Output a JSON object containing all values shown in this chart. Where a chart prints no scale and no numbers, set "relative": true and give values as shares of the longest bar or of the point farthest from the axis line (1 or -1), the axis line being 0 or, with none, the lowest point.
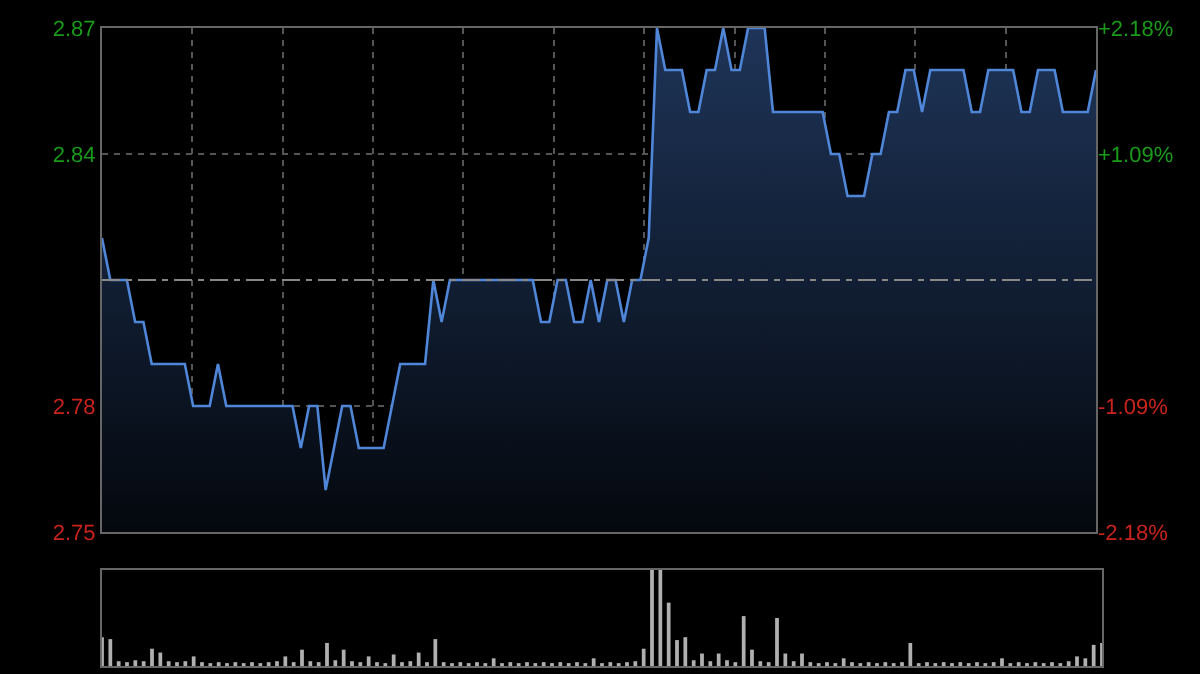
{
  "chart_data": [
    {
      "type": "area",
      "categories": [
        null,
        null,
        null,
        null,
        null,
        null,
        null,
        null,
        null,
        null,
        null,
        null,
        null,
        null,
        null,
        null,
        null,
        null,
        null,
        null,
        null,
        null,
        null,
        null,
        null,
        null,
        null,
        null,
        null,
        null,
        null,
        null,
        null,
        null,
        null,
        null,
        null,
        null,
        null,
        null,
        null,
        null,
        null,
        null,
        null,
        null,
        null,
        null,
        null,
        null,
        null,
        null,
        null,
        null,
        null,
        null,
        null,
        null,
        null,
        null,
        null,
        null,
        null,
        null,
        null,
        null,
        null,
        null,
        null,
        null,
        null,
        null,
        null,
        null,
        null,
        null,
        null,
        null,
        null,
        null,
        null,
        null,
        null,
        null,
        null,
        null,
        null,
        null,
        null,
        null,
        null,
        null,
        null,
        null,
        null,
        null,
        null,
        null,
        null,
        null,
        null,
        null,
        null,
        null,
        null,
        null,
        null,
        null,
        null,
        null,
        null,
        null,
        null,
        null,
        null,
        null,
        null,
        null,
        null,
        null,
        null
      ],
      "series": [
        {
          "color": "#4f86d8",
          "values": [
            2.82,
            2.81,
            2.81,
            2.81,
            2.8,
            2.8,
            2.79,
            2.79,
            2.79,
            2.79,
            2.79,
            2.78,
            2.78,
            2.78,
            2.79,
            2.78,
            2.78,
            2.78,
            2.78,
            2.78,
            2.78,
            2.78,
            2.78,
            2.78,
            2.77,
            2.78,
            2.78,
            2.76,
            2.77,
            2.78,
            2.78,
            2.77,
            2.77,
            2.77,
            2.77,
            2.78,
            2.79,
            2.79,
            2.79,
            2.79,
            2.81,
            2.8,
            2.81,
            2.81,
            2.81,
            2.81,
            2.81,
            2.81,
            2.81,
            2.81,
            2.81,
            2.81,
            2.81,
            2.8,
            2.8,
            2.81,
            2.81,
            2.8,
            2.8,
            2.81,
            2.8,
            2.81,
            2.81,
            2.8,
            2.81,
            2.81,
            2.82,
            2.87,
            2.86,
            2.86,
            2.86,
            2.85,
            2.85,
            2.86,
            2.86,
            2.87,
            2.86,
            2.86,
            2.87,
            2.87,
            2.87,
            2.85,
            2.85,
            2.85,
            2.85,
            2.85,
            2.85,
            2.85,
            2.84,
            2.84,
            2.83,
            2.83,
            2.83,
            2.84,
            2.84,
            2.85,
            2.85,
            2.86,
            2.86,
            2.85,
            2.86,
            2.86,
            2.86,
            2.86,
            2.86,
            2.85,
            2.85,
            2.86,
            2.86,
            2.86,
            2.86,
            2.85,
            2.85,
            2.86,
            2.86,
            2.86,
            2.85,
            2.85,
            2.85,
            2.85,
            2.86
          ]
        }
      ],
      "ylim": [
        2.75,
        2.87
      ],
      "yticks": [
        2.75,
        2.78,
        2.84,
        2.87
      ],
      "y2lim": [
        -2.18,
        2.18
      ],
      "y2ticks": [
        {
          "value": -2.18,
          "label": "-2.18%"
        },
        {
          "value": -1.09,
          "label": "-1.09%"
        },
        {
          "value": 1.09,
          "label": "+1.09%"
        },
        {
          "value": 2.18,
          "label": "+2.18%"
        }
      ],
      "ref_lines": [
        {
          "axis": "y",
          "value": 2.81,
          "line_style": "dashed"
        }
      ],
      "grid": true,
      "marker": "none",
      "line_style": "solid",
      "tick_labels": "y"
    },
    {
      "type": "bar",
      "relative": true,
      "categories": [
        null,
        null,
        null,
        null,
        null,
        null,
        null,
        null,
        null,
        null,
        null,
        null,
        null,
        null,
        null,
        null,
        null,
        null,
        null,
        null,
        null,
        null,
        null,
        null,
        null,
        null,
        null,
        null,
        null,
        null,
        null,
        null,
        null,
        null,
        null,
        null,
        null,
        null,
        null,
        null,
        null,
        null,
        null,
        null,
        null,
        null,
        null,
        null,
        null,
        null,
        null,
        null,
        null,
        null,
        null,
        null,
        null,
        null,
        null,
        null,
        null,
        null,
        null,
        null,
        null,
        null,
        null,
        null,
        null,
        null,
        null,
        null,
        null,
        null,
        null,
        null,
        null,
        null,
        null,
        null,
        null,
        null,
        null,
        null,
        null,
        null,
        null,
        null,
        null,
        null,
        null,
        null,
        null,
        null,
        null,
        null,
        null,
        null,
        null,
        null,
        null,
        null,
        null,
        null,
        null,
        null,
        null,
        null,
        null,
        null,
        null,
        null,
        null,
        null,
        null,
        null,
        null,
        null,
        null,
        null,
        null
      ],
      "values": [
        0.3,
        0.28,
        0.05,
        0.04,
        0.06,
        0.05,
        0.18,
        0.14,
        0.05,
        0.04,
        0.05,
        0.1,
        0.04,
        0.03,
        0.04,
        0.03,
        0.04,
        0.03,
        0.04,
        0.03,
        0.04,
        0.05,
        0.1,
        0.04,
        0.17,
        0.05,
        0.04,
        0.24,
        0.06,
        0.17,
        0.05,
        0.04,
        0.1,
        0.04,
        0.03,
        0.12,
        0.04,
        0.05,
        0.14,
        0.04,
        0.28,
        0.04,
        0.03,
        0.04,
        0.03,
        0.04,
        0.03,
        0.08,
        0.03,
        0.04,
        0.03,
        0.04,
        0.03,
        0.04,
        0.03,
        0.04,
        0.03,
        0.04,
        0.03,
        0.08,
        0.03,
        0.04,
        0.03,
        0.04,
        0.05,
        0.18,
        1.0,
        1.0,
        0.66,
        0.27,
        0.3,
        0.06,
        0.13,
        0.05,
        0.13,
        0.06,
        0.04,
        0.52,
        0.17,
        0.05,
        0.04,
        0.5,
        0.13,
        0.05,
        0.13,
        0.04,
        0.03,
        0.04,
        0.03,
        0.08,
        0.04,
        0.03,
        0.04,
        0.03,
        0.04,
        0.03,
        0.04,
        0.24,
        0.03,
        0.04,
        0.03,
        0.04,
        0.03,
        0.04,
        0.03,
        0.04,
        0.03,
        0.04,
        0.08,
        0.03,
        0.04,
        0.03,
        0.04,
        0.03,
        0.04,
        0.03,
        0.05,
        0.1,
        0.08,
        0.22,
        0.24
      ],
      "color": "#b0b0b0"
    }
  ]
}
